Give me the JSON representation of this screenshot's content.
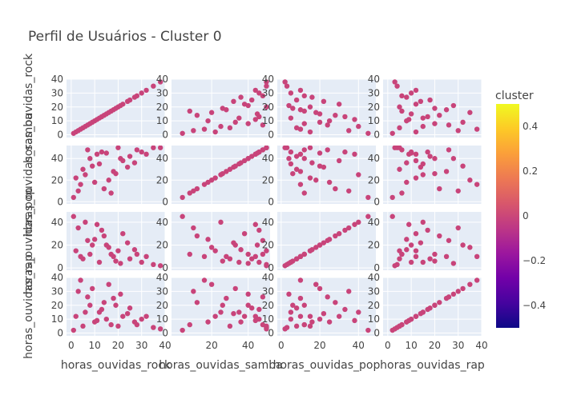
{
  "title": "Perfil de Usuários - Cluster 0",
  "colorbar": {
    "title": "cluster",
    "ticks": [
      "0.4",
      "0.2",
      "0",
      "−0.2",
      "−0.4"
    ],
    "tick_values": [
      0.4,
      0.2,
      0,
      -0.2,
      -0.4
    ],
    "range": [
      -0.5,
      0.5
    ],
    "colors": [
      "#0d0887",
      "#46039f",
      "#7201a8",
      "#9c179e",
      "#bd3786",
      "#d8576b",
      "#ed7953",
      "#fb9f3a",
      "#fdca26",
      "#f0f921"
    ]
  },
  "colors": {
    "marker": "#c8447a",
    "plot_bg": "#e5ecf6",
    "grid": "#ffffff"
  },
  "chart_data": {
    "type": "scatter",
    "kind": "scatter_matrix",
    "dimensions": [
      "horas_ouvidas_rock",
      "horas_ouvidas_samba",
      "horas_ouvidas_pop",
      "horas_ouvidas_rap"
    ],
    "axis_labels": {
      "x": [
        "horas_ouvidas_rock",
        "horas_ouvidas_samba",
        "horas_ouvidas_pop",
        "horas_ouvidas_rap"
      ],
      "y": [
        "horas_ouvidas_rock",
        "horas_ouvidas_samba",
        "horas_ouvidas_pop",
        "horas_ouvidas_rap"
      ]
    },
    "ranges": [
      [
        -2,
        40
      ],
      [
        -2,
        52
      ],
      [
        -2,
        49
      ],
      [
        -2,
        40
      ]
    ],
    "x_ticks": [
      [
        0,
        10,
        20,
        30,
        40
      ],
      [
        20,
        40
      ],
      [
        0,
        20,
        40
      ],
      [
        0,
        10,
        20,
        30,
        40
      ]
    ],
    "y_ticks": [
      [
        0,
        10,
        20,
        30,
        40
      ],
      [
        0,
        20,
        40
      ],
      [
        0,
        20,
        40
      ],
      [
        0,
        10,
        20,
        30,
        40
      ]
    ],
    "x_ticks_shown_row": 3,
    "y_ticks_shown_col": 0,
    "color_value": 0,
    "grid": true,
    "legend": "colorbar-right",
    "samples": [
      [
        2,
        22,
        15,
        12
      ],
      [
        5,
        30,
        8,
        5
      ],
      [
        8,
        40,
        12,
        20
      ],
      [
        10,
        18,
        25,
        8
      ],
      [
        12,
        35,
        5,
        15
      ],
      [
        15,
        45,
        20,
        10
      ],
      [
        18,
        28,
        10,
        25
      ],
      [
        20,
        50,
        15,
        5
      ],
      [
        22,
        38,
        30,
        12
      ],
      [
        25,
        42,
        8,
        18
      ],
      [
        28,
        48,
        12,
        6
      ],
      [
        30,
        46,
        5,
        10
      ],
      [
        35,
        50,
        3,
        4
      ],
      [
        38,
        50,
        2,
        3
      ],
      [
        3,
        10,
        35,
        30
      ],
      [
        6,
        25,
        40,
        15
      ],
      [
        9,
        33,
        20,
        32
      ],
      [
        14,
        12,
        28,
        22
      ],
      [
        16,
        20,
        18,
        35
      ],
      [
        24,
        32,
        22,
        14
      ],
      [
        11,
        44,
        38,
        9
      ],
      [
        7,
        48,
        24,
        26
      ],
      [
        19,
        26,
        6,
        20
      ],
      [
        27,
        36,
        16,
        8
      ],
      [
        1,
        4,
        45,
        2
      ],
      [
        4,
        16,
        10,
        38
      ],
      [
        13,
        46,
        33,
        17
      ],
      [
        21,
        40,
        4,
        28
      ],
      [
        32,
        44,
        10,
        12
      ],
      [
        17,
        8,
        12,
        6
      ]
    ]
  }
}
